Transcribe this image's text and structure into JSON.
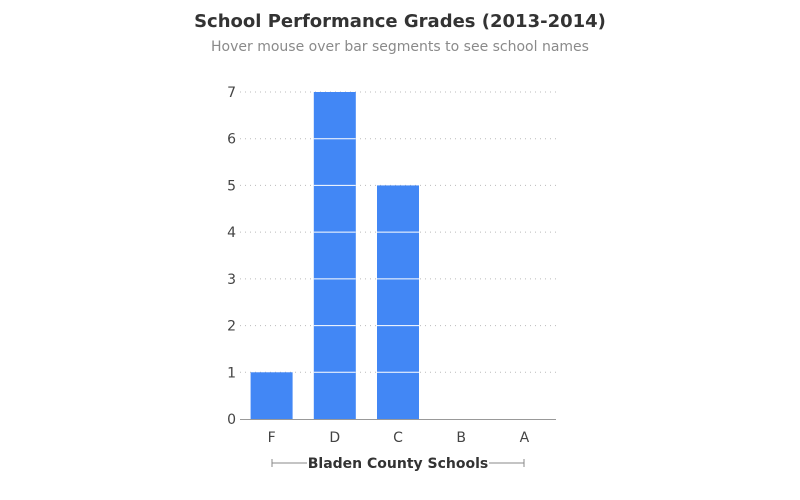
{
  "chart_data": {
    "type": "bar",
    "title": "School Performance Grades (2013-2014)",
    "subtitle": "Hover mouse over bar segments to see school names",
    "xlabel": "Bladen County Schools",
    "ylabel": "",
    "categories": [
      "F",
      "D",
      "C",
      "B",
      "A"
    ],
    "values": [
      1,
      7,
      5,
      0,
      0
    ],
    "segment_unit": 1,
    "ylim": [
      0,
      7
    ],
    "yticks": [
      0,
      1,
      2,
      3,
      4,
      5,
      6,
      7
    ],
    "grid": true,
    "grid_style": "dotted",
    "legend": "none",
    "colors": {
      "bar": "#4287f5",
      "segment_divider": "#ffffff",
      "grid": "#bbbbbb",
      "axis": "#999999",
      "bracket": "#888888"
    }
  }
}
